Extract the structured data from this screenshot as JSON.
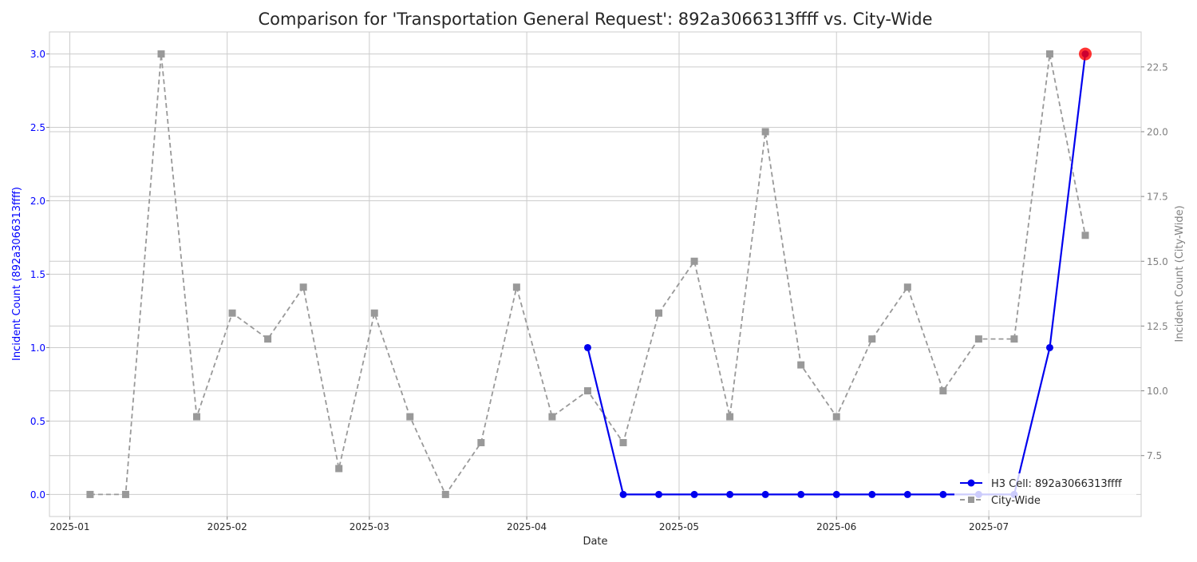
{
  "chart_data": {
    "type": "line",
    "title": "Comparison for 'Transportation General Request': 892a3066313ffff vs. City-Wide",
    "xlabel": "Date",
    "ylabel_left": "Incident Count (892a3066313ffff)",
    "ylabel_right": "Incident Count (City-Wide)",
    "xlim": [
      "2024-12-28",
      "2025-07-31"
    ],
    "x_ticks": [
      "2025-01-01",
      "2025-02-01",
      "2025-03-01",
      "2025-04-01",
      "2025-05-01",
      "2025-06-01",
      "2025-07-01"
    ],
    "x_tick_labels": [
      "2025-01",
      "2025-02",
      "2025-03",
      "2025-04",
      "2025-05",
      "2025-06",
      "2025-07"
    ],
    "ylim_left": [
      -0.15,
      3.15
    ],
    "y_ticks_left": [
      0.0,
      0.5,
      1.0,
      1.5,
      2.0,
      2.5,
      3.0
    ],
    "y_tick_labels_left": [
      "0.0",
      "0.5",
      "1.0",
      "1.5",
      "2.0",
      "2.5",
      "3.0"
    ],
    "ylim_right": [
      5.15,
      23.85
    ],
    "y_ticks_right": [
      7.5,
      10.0,
      12.5,
      15.0,
      17.5,
      20.0,
      22.5
    ],
    "y_tick_labels_right": [
      "7.5",
      "10.0",
      "12.5",
      "15.0",
      "17.5",
      "20.0",
      "22.5"
    ],
    "grid": true,
    "legend_position": "lower-right",
    "colors": {
      "h3": "#0000ee",
      "city": "#999999",
      "highlight": "#ff0000",
      "left_axis_text": "#0000ff",
      "right_axis_text": "#808080"
    },
    "series": [
      {
        "name": "H3 Cell: 892a3066313ffff",
        "axis": "left",
        "style": "solid",
        "marker": "circle",
        "x": [
          "2025-04-13",
          "2025-04-20",
          "2025-04-27",
          "2025-05-04",
          "2025-05-11",
          "2025-05-18",
          "2025-05-25",
          "2025-06-01",
          "2025-06-08",
          "2025-06-15",
          "2025-06-22",
          "2025-06-29",
          "2025-07-06",
          "2025-07-13",
          "2025-07-20"
        ],
        "values": [
          1,
          0,
          0,
          0,
          0,
          0,
          0,
          0,
          0,
          0,
          0,
          0,
          0,
          1,
          3
        ]
      },
      {
        "name": "City-Wide",
        "axis": "right",
        "style": "dashed",
        "marker": "square",
        "x": [
          "2025-01-05",
          "2025-01-12",
          "2025-01-19",
          "2025-01-26",
          "2025-02-02",
          "2025-02-09",
          "2025-02-16",
          "2025-02-23",
          "2025-03-02",
          "2025-03-09",
          "2025-03-16",
          "2025-03-23",
          "2025-03-30",
          "2025-04-06",
          "2025-04-13",
          "2025-04-20",
          "2025-04-27",
          "2025-05-04",
          "2025-05-11",
          "2025-05-18",
          "2025-05-25",
          "2025-06-01",
          "2025-06-08",
          "2025-06-15",
          "2025-06-22",
          "2025-06-29",
          "2025-07-06",
          "2025-07-13",
          "2025-07-20"
        ],
        "values": [
          6,
          6,
          23,
          9,
          13,
          12,
          14,
          7,
          13,
          9,
          6,
          8,
          14,
          9,
          10,
          8,
          13,
          15,
          9,
          20,
          11,
          9,
          12,
          14,
          10,
          12,
          12,
          23,
          16
        ]
      }
    ],
    "highlight_point": {
      "series": "H3 Cell: 892a3066313ffff",
      "x": "2025-07-20",
      "value": 3
    }
  }
}
